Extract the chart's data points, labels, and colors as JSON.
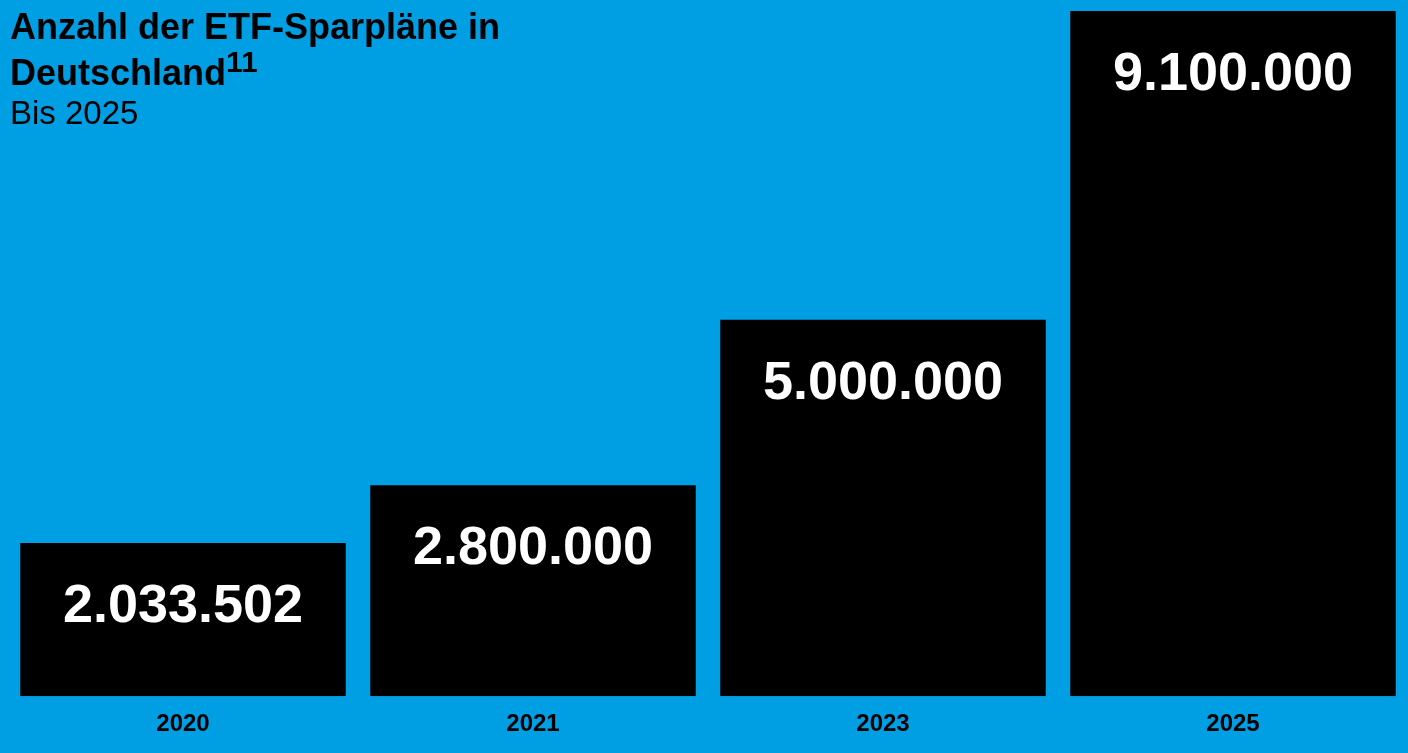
{
  "chart_data": {
    "type": "bar",
    "title": "Anzahl der ETF-Sparpläne in Deutschland$^{11}$",
    "subtitle": "Bis 2025",
    "categories": [
      "2020",
      "2021",
      "2023",
      "2025"
    ],
    "values": [
      2033502,
      2800000,
      5000000,
      9100000
    ],
    "value_labels": [
      "2.033.502",
      "2.800.000",
      "5.000.000",
      "9.100.000"
    ],
    "color": "#000000",
    "grid": false,
    "legend": false,
    "tick_labels": "x"
  }
}
